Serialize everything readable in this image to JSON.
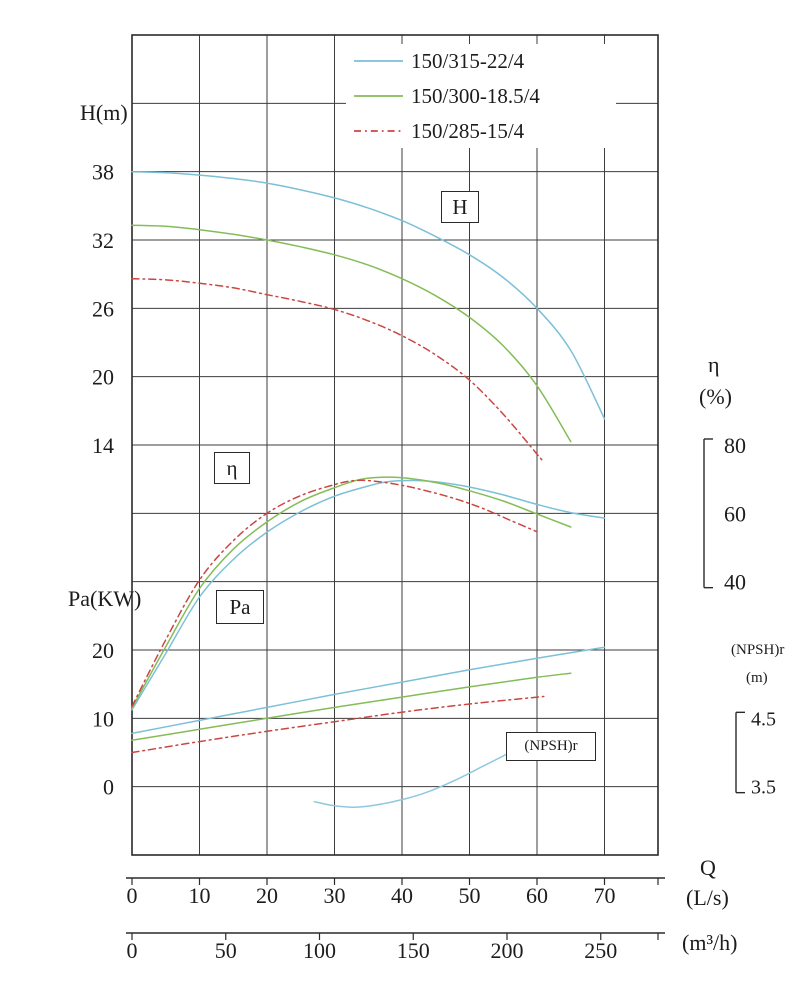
{
  "labels": {
    "h_axis_title": "H(m)",
    "pa_axis_title": "Pa(KW)",
    "eta_title": "η",
    "eta_unit": "(%)",
    "npsh_title": "(NPSH)r",
    "npsh_unit": "(m)",
    "q_title": "Q",
    "q_unit_ls": "(L/s)",
    "q_unit_m3h": "(m³/h)",
    "box_h": "H",
    "box_eta": "η",
    "box_pa": "Pa",
    "box_npsh": "(NPSH)r"
  },
  "legend": [
    {
      "label": "150/315-22/4",
      "color": "#7cc0d8",
      "dash": "solid"
    },
    {
      "label": "150/300-18.5/4",
      "color": "#84bd58",
      "dash": "solid"
    },
    {
      "label": "150/285-15/4",
      "color": "#cb4643",
      "dash": "dashdot"
    }
  ],
  "chart_data": {
    "type": "line",
    "description": "Centrifugal pump performance curves: head H, efficiency η, shaft power Pa and (NPSH)r versus flow Q for three pump models",
    "x": {
      "label": "Q",
      "primary_units": "L/s",
      "secondary_units": "m³/h",
      "ticks_ls": [
        0,
        10,
        20,
        30,
        40,
        50,
        60,
        70
      ],
      "ticks_m3h": [
        0,
        50,
        100,
        150,
        200,
        250
      ],
      "range_ls": [
        0,
        78
      ]
    },
    "y_axes": {
      "H": {
        "title": "H(m)",
        "ticks": [
          38,
          32,
          26,
          20,
          14
        ]
      },
      "eta": {
        "title": "η (%)",
        "ticks": [
          80,
          60,
          40
        ]
      },
      "Pa": {
        "title": "Pa(KW)",
        "ticks": [
          20,
          10,
          0
        ]
      },
      "NPSH": {
        "title": "(NPSH)r (m)",
        "ticks": [
          4.5,
          3.5
        ]
      }
    },
    "series": [
      {
        "name": "150/315-22/4 H",
        "quantity": "H",
        "color": "#7cc0d8",
        "dash": "solid",
        "points": [
          [
            0,
            38
          ],
          [
            5,
            37.9
          ],
          [
            10,
            37.7
          ],
          [
            15,
            37.4
          ],
          [
            20,
            37
          ],
          [
            25,
            36.4
          ],
          [
            30,
            35.7
          ],
          [
            35,
            34.8
          ],
          [
            40,
            33.7
          ],
          [
            45,
            32.3
          ],
          [
            50,
            30.7
          ],
          [
            55,
            28.7
          ],
          [
            60,
            26
          ],
          [
            65,
            22.3
          ],
          [
            70,
            16.3
          ]
        ]
      },
      {
        "name": "150/300-18.5/4 H",
        "quantity": "H",
        "color": "#84bd58",
        "dash": "solid",
        "points": [
          [
            0,
            33.3
          ],
          [
            5,
            33.2
          ],
          [
            10,
            32.9
          ],
          [
            15,
            32.5
          ],
          [
            20,
            32
          ],
          [
            25,
            31.4
          ],
          [
            30,
            30.7
          ],
          [
            35,
            29.8
          ],
          [
            40,
            28.6
          ],
          [
            45,
            27.1
          ],
          [
            50,
            25.2
          ],
          [
            55,
            22.7
          ],
          [
            60,
            19.2
          ],
          [
            65,
            14.3
          ]
        ]
      },
      {
        "name": "150/285-15/4 H",
        "quantity": "H",
        "color": "#cb4643",
        "dash": "dashdot",
        "points": [
          [
            0,
            28.6
          ],
          [
            5,
            28.5
          ],
          [
            10,
            28.2
          ],
          [
            15,
            27.8
          ],
          [
            20,
            27.2
          ],
          [
            25,
            26.6
          ],
          [
            30,
            25.9
          ],
          [
            35,
            24.9
          ],
          [
            40,
            23.6
          ],
          [
            45,
            21.9
          ],
          [
            50,
            19.7
          ],
          [
            55,
            16.7
          ],
          [
            60,
            13.2
          ],
          [
            61,
            12.5
          ]
        ]
      },
      {
        "name": "150/315-22/4 eta",
        "quantity": "eta",
        "color": "#7cc0d8",
        "dash": "solid",
        "points": [
          [
            0,
            2.5
          ],
          [
            5,
            19
          ],
          [
            10,
            35.5
          ],
          [
            15,
            46.5
          ],
          [
            20,
            54.5
          ],
          [
            25,
            60.5
          ],
          [
            30,
            65
          ],
          [
            35,
            68
          ],
          [
            38,
            69.3
          ],
          [
            42,
            69.6
          ],
          [
            46,
            69
          ],
          [
            50,
            67.7
          ],
          [
            55,
            65.4
          ],
          [
            60,
            62.6
          ],
          [
            65,
            60.2
          ],
          [
            70,
            58.6
          ]
        ]
      },
      {
        "name": "150/300-18.5/4 eta",
        "quantity": "eta",
        "color": "#84bd58",
        "dash": "solid",
        "points": [
          [
            0,
            3
          ],
          [
            5,
            21
          ],
          [
            10,
            38
          ],
          [
            15,
            49.5
          ],
          [
            20,
            57.5
          ],
          [
            25,
            63.5
          ],
          [
            30,
            67.5
          ],
          [
            34,
            70
          ],
          [
            38,
            70.6
          ],
          [
            42,
            70
          ],
          [
            46,
            68.6
          ],
          [
            50,
            66.6
          ],
          [
            55,
            63.6
          ],
          [
            60,
            59.8
          ],
          [
            65,
            56
          ]
        ]
      },
      {
        "name": "150/285-15/4 eta",
        "quantity": "eta",
        "color": "#cb4643",
        "dash": "dashdot",
        "points": [
          [
            0,
            3.5
          ],
          [
            5,
            23
          ],
          [
            10,
            40.5
          ],
          [
            15,
            52
          ],
          [
            20,
            60
          ],
          [
            25,
            65.2
          ],
          [
            30,
            68.4
          ],
          [
            33,
            69.6
          ],
          [
            36,
            69.4
          ],
          [
            40,
            68.2
          ],
          [
            44,
            66.4
          ],
          [
            48,
            64.2
          ],
          [
            52,
            61.4
          ],
          [
            56,
            58
          ],
          [
            60,
            54.6
          ]
        ]
      },
      {
        "name": "150/315-22/4 Pa",
        "quantity": "Pa",
        "color": "#7cc0d8",
        "dash": "solid",
        "points": [
          [
            0,
            7.8
          ],
          [
            10,
            9.7
          ],
          [
            20,
            11.6
          ],
          [
            30,
            13.5
          ],
          [
            40,
            15.3
          ],
          [
            50,
            17.1
          ],
          [
            60,
            18.8
          ],
          [
            70,
            20.4
          ]
        ]
      },
      {
        "name": "150/300-18.5/4 Pa",
        "quantity": "Pa",
        "color": "#84bd58",
        "dash": "solid",
        "points": [
          [
            0,
            6.8
          ],
          [
            10,
            8.4
          ],
          [
            20,
            10
          ],
          [
            30,
            11.6
          ],
          [
            40,
            13.1
          ],
          [
            50,
            14.6
          ],
          [
            60,
            16
          ],
          [
            65,
            16.6
          ]
        ]
      },
      {
        "name": "150/285-15/4 Pa",
        "quantity": "Pa",
        "color": "#cb4643",
        "dash": "dashdot",
        "points": [
          [
            0,
            5
          ],
          [
            10,
            6.6
          ],
          [
            20,
            8.1
          ],
          [
            30,
            9.5
          ],
          [
            40,
            10.9
          ],
          [
            50,
            12.1
          ],
          [
            61,
            13.2
          ]
        ]
      },
      {
        "name": "(NPSH)r",
        "quantity": "NPSH",
        "color": "#8fc9dd",
        "dash": "solid",
        "points": [
          [
            27,
            3.28
          ],
          [
            30,
            3.22
          ],
          [
            33,
            3.2
          ],
          [
            36,
            3.23
          ],
          [
            40,
            3.31
          ],
          [
            44,
            3.43
          ],
          [
            48,
            3.6
          ],
          [
            52,
            3.8
          ],
          [
            55,
            3.95
          ],
          [
            57,
            4.05
          ]
        ]
      }
    ]
  }
}
